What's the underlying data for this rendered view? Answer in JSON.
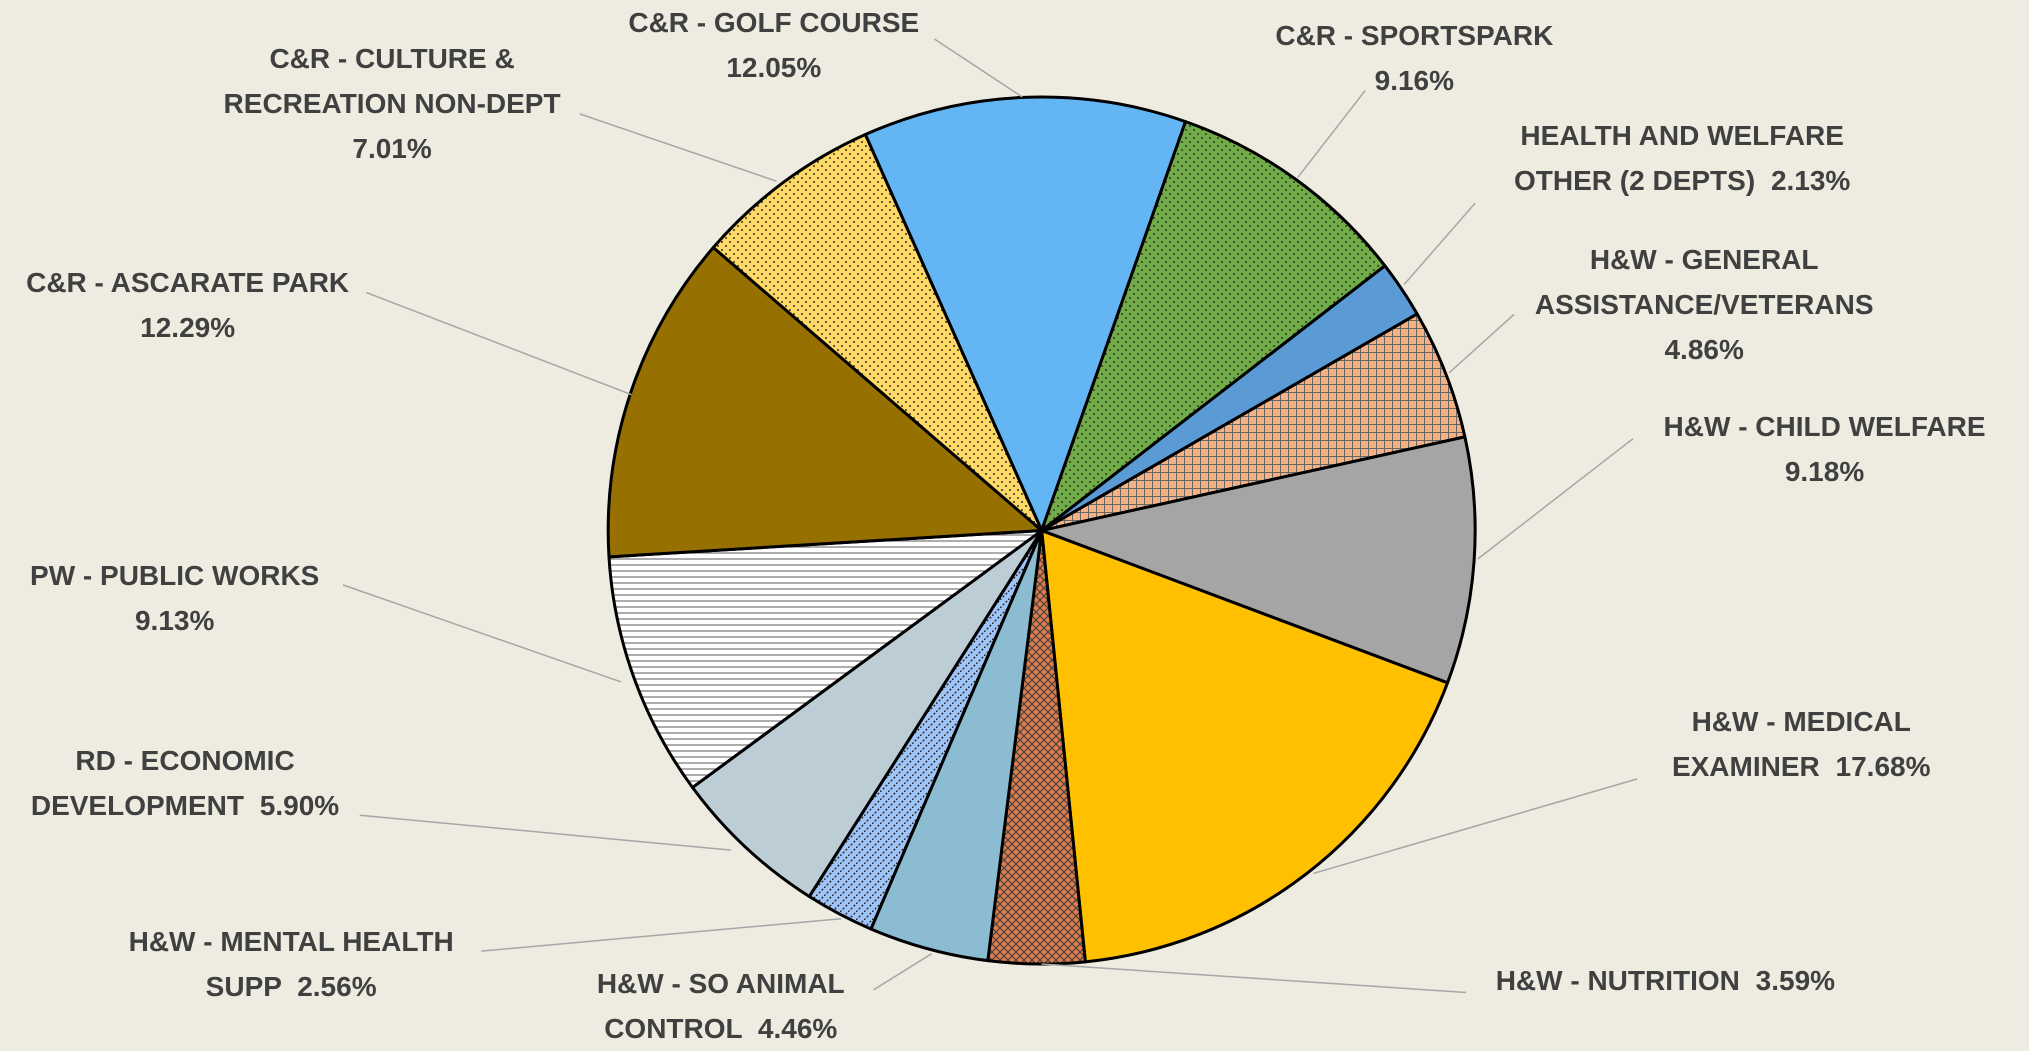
{
  "chart_data": {
    "type": "pie",
    "categories": [
      "C&R - GOLF COURSE",
      "C&R - SPORTSPARK",
      "HEALTH AND WELFARE OTHER (2 DEPTS)",
      "H&W - GENERAL ASSISTANCE/VETERANS",
      "H&W - CHILD WELFARE",
      "H&W - MEDICAL EXAMINER",
      "H&W - NUTRITION",
      "H&W - SO ANIMAL CONTROL",
      "H&W - MENTAL HEALTH SUPP",
      "RD - ECONOMIC DEVELOPMENT",
      "PW - PUBLIC WORKS",
      "C&R - ASCARATE PARK",
      "C&R - CULTURE & RECREATION NON-DEPT"
    ],
    "values": [
      12.05,
      9.16,
      2.13,
      4.86,
      9.18,
      17.68,
      3.59,
      4.46,
      2.56,
      5.9,
      9.13,
      12.29,
      7.01
    ],
    "value_labels": [
      "12.05%",
      "9.16%",
      "2.13%",
      "4.86%",
      "9.18%",
      "17.68%",
      "3.59%",
      "4.46%",
      "2.56%",
      "5.90%",
      "9.13%",
      "12.29%",
      "7.01%"
    ],
    "colors": [
      "#63b5f3",
      "#70ad47",
      "#5b9bd5",
      "#f4b183",
      "#a5a5a5",
      "#ffc000",
      "#e07b4a",
      "#8bbcd2",
      "#9fc5f8",
      "#bdcdd6",
      "#ffffff",
      "#967000",
      "#ffd966"
    ],
    "patterns": [
      null,
      "dots",
      null,
      "grid",
      null,
      null,
      "cross",
      null,
      "diag",
      null,
      "hlines",
      null,
      "dots"
    ]
  }
}
